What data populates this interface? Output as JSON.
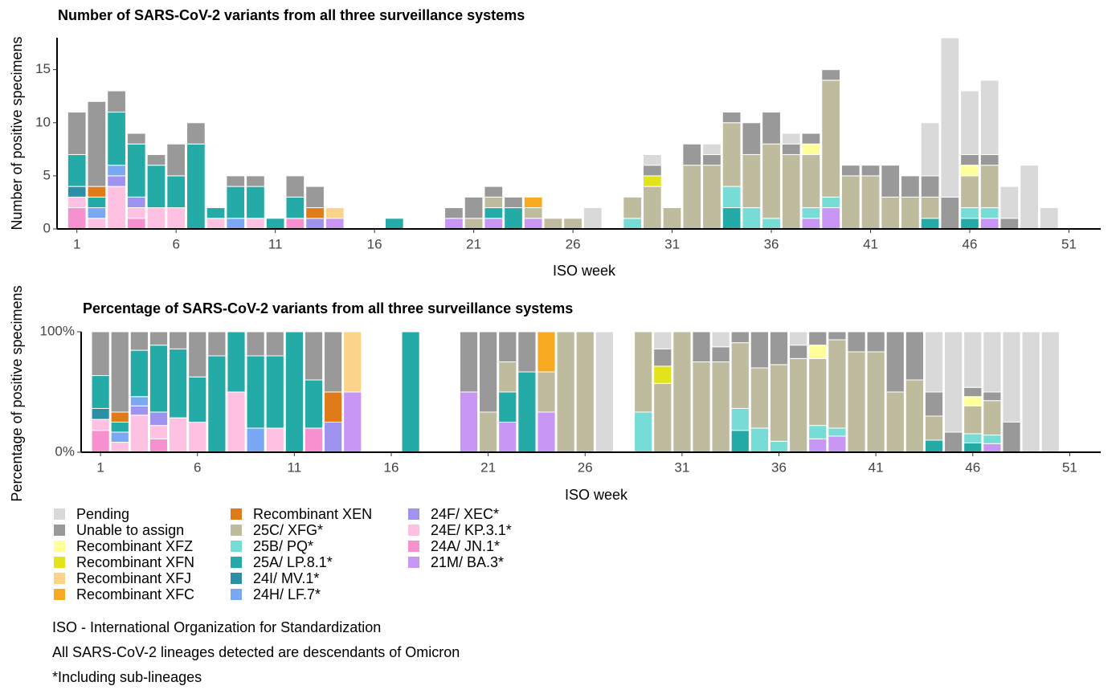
{
  "chart_data": [
    {
      "type": "bar",
      "stacking": "normal",
      "title": "Number of SARS-CoV-2 variants from all three surveillance systems",
      "x_label": "ISO week",
      "y_label": "Number of positive specimens",
      "x": [
        1,
        2,
        3,
        4,
        5,
        6,
        7,
        8,
        9,
        10,
        11,
        12,
        13,
        14,
        17,
        20,
        21,
        22,
        23,
        24,
        25,
        26,
        27,
        29,
        30,
        31,
        32,
        33,
        34,
        35,
        36,
        37,
        38,
        39,
        40,
        41,
        42,
        43,
        44,
        45,
        46,
        47,
        48,
        49,
        50
      ],
      "xlim": [
        0,
        52.6
      ],
      "xticks": [
        1,
        6,
        11,
        16,
        21,
        26,
        31,
        36,
        41,
        46,
        51
      ],
      "ylim": [
        0,
        18
      ],
      "yticks": [
        0,
        5,
        10,
        15
      ],
      "series": [
        {
          "name": "Pending",
          "color": "#d9d9d9",
          "values": [
            0,
            0,
            0,
            0,
            0,
            0,
            0,
            0,
            0,
            0,
            0,
            0,
            0,
            0,
            0,
            0,
            0,
            0,
            0,
            0,
            0,
            0,
            2,
            0,
            1,
            0,
            0,
            1,
            0,
            0,
            0,
            1,
            0,
            0,
            0,
            0,
            0,
            0,
            5,
            15,
            6,
            7,
            3,
            6,
            2
          ]
        },
        {
          "name": "Unable to assign",
          "color": "#999999",
          "values": [
            4,
            8,
            2,
            1,
            1,
            3,
            2,
            0,
            1,
            1,
            0,
            2,
            2,
            0,
            0,
            1,
            2,
            1,
            1,
            0,
            0,
            0,
            0,
            0,
            1,
            0,
            2,
            1,
            1,
            3,
            3,
            1,
            1,
            1,
            1,
            1,
            3,
            2,
            2,
            3,
            1,
            1,
            1,
            0,
            0
          ]
        },
        {
          "name": "Recombinant XFZ",
          "color": "#ffff99",
          "values": [
            0,
            0,
            0,
            0,
            0,
            0,
            0,
            0,
            0,
            0,
            0,
            0,
            0,
            0,
            0,
            0,
            0,
            0,
            0,
            0,
            0,
            0,
            0,
            0,
            0,
            0,
            0,
            0,
            0,
            0,
            0,
            0,
            1,
            0,
            0,
            0,
            0,
            0,
            0,
            0,
            1,
            0,
            0,
            0,
            0
          ]
        },
        {
          "name": "Recombinant XFN",
          "color": "#e3e31a",
          "values": [
            0,
            0,
            0,
            0,
            0,
            0,
            0,
            0,
            0,
            0,
            0,
            0,
            0,
            0,
            0,
            0,
            0,
            0,
            0,
            0,
            0,
            0,
            0,
            0,
            1,
            0,
            0,
            0,
            0,
            0,
            0,
            0,
            0,
            0,
            0,
            0,
            0,
            0,
            0,
            0,
            0,
            0,
            0,
            0,
            0
          ]
        },
        {
          "name": "Recombinant XFJ",
          "color": "#fcd38a",
          "values": [
            0,
            0,
            0,
            0,
            0,
            0,
            0,
            0,
            0,
            0,
            0,
            0,
            0,
            1,
            0,
            0,
            0,
            0,
            0,
            0,
            0,
            0,
            0,
            0,
            0,
            0,
            0,
            0,
            0,
            0,
            0,
            0,
            0,
            0,
            0,
            0,
            0,
            0,
            0,
            0,
            0,
            0,
            0,
            0,
            0
          ]
        },
        {
          "name": "Recombinant XFC",
          "color": "#f8a922",
          "values": [
            0,
            0,
            0,
            0,
            0,
            0,
            0,
            0,
            0,
            0,
            0,
            0,
            0,
            0,
            0,
            0,
            0,
            0,
            0,
            1,
            0,
            0,
            0,
            0,
            0,
            0,
            0,
            0,
            0,
            0,
            0,
            0,
            0,
            0,
            0,
            0,
            0,
            0,
            0,
            0,
            0,
            0,
            0,
            0,
            0
          ]
        },
        {
          "name": "Recombinant XEN",
          "color": "#e07b1a",
          "values": [
            0,
            1,
            0,
            0,
            0,
            0,
            0,
            0,
            0,
            0,
            0,
            0,
            1,
            0,
            0,
            0,
            0,
            0,
            0,
            0,
            0,
            0,
            0,
            0,
            0,
            0,
            0,
            0,
            0,
            0,
            0,
            0,
            0,
            0,
            0,
            0,
            0,
            0,
            0,
            0,
            0,
            0,
            0,
            0,
            0
          ]
        },
        {
          "name": "25C/ XFG*",
          "color": "#bfbb9e",
          "values": [
            0,
            0,
            0,
            0,
            0,
            0,
            0,
            0,
            0,
            0,
            0,
            0,
            0,
            0,
            0,
            0,
            1,
            1,
            0,
            1,
            1,
            1,
            0,
            2,
            4,
            2,
            6,
            6,
            6,
            5,
            7,
            7,
            5,
            11,
            5,
            5,
            3,
            3,
            2,
            0,
            3,
            4,
            0,
            0,
            0
          ]
        },
        {
          "name": "25B/ PQ*",
          "color": "#77dbd6",
          "values": [
            0,
            0,
            0,
            0,
            0,
            0,
            0,
            0,
            0,
            0,
            0,
            0,
            0,
            0,
            0,
            0,
            0,
            0,
            0,
            0,
            0,
            0,
            0,
            1,
            0,
            0,
            0,
            0,
            2,
            2,
            1,
            0,
            1,
            1,
            0,
            0,
            0,
            0,
            0,
            0,
            1,
            1,
            0,
            0,
            0
          ]
        },
        {
          "name": "25A/ LP.8.1*",
          "color": "#25aba7",
          "values": [
            3,
            1,
            5,
            5,
            4,
            3,
            8,
            1,
            3,
            3,
            1,
            2,
            0,
            0,
            1,
            0,
            0,
            1,
            2,
            0,
            0,
            0,
            0,
            0,
            0,
            0,
            0,
            0,
            2,
            0,
            0,
            0,
            0,
            0,
            0,
            0,
            0,
            0,
            1,
            0,
            1,
            0,
            0,
            0,
            0
          ]
        },
        {
          "name": "24I/ MV.1*",
          "color": "#2b8fa8",
          "values": [
            1,
            0,
            0,
            0,
            0,
            0,
            0,
            0,
            0,
            0,
            0,
            0,
            0,
            0,
            0,
            0,
            0,
            0,
            0,
            0,
            0,
            0,
            0,
            0,
            0,
            0,
            0,
            0,
            0,
            0,
            0,
            0,
            0,
            0,
            0,
            0,
            0,
            0,
            0,
            0,
            0,
            0,
            0,
            0,
            0
          ]
        },
        {
          "name": "24H/ LF.7*",
          "color": "#7aa8f3",
          "values": [
            0,
            1,
            1,
            0,
            0,
            0,
            0,
            0,
            1,
            0,
            0,
            0,
            0,
            0,
            0,
            0,
            0,
            0,
            0,
            0,
            0,
            0,
            0,
            0,
            0,
            0,
            0,
            0,
            0,
            0,
            0,
            0,
            0,
            0,
            0,
            0,
            0,
            0,
            0,
            0,
            0,
            0,
            0,
            0,
            0
          ]
        },
        {
          "name": "24F/ XEC*",
          "color": "#9e94f0",
          "values": [
            0,
            0,
            1,
            1,
            0,
            0,
            0,
            0,
            0,
            0,
            0,
            0,
            1,
            0,
            0,
            0,
            0,
            0,
            0,
            0,
            0,
            0,
            0,
            0,
            0,
            0,
            0,
            0,
            0,
            0,
            0,
            0,
            0,
            0,
            0,
            0,
            0,
            0,
            0,
            0,
            0,
            0,
            0,
            0,
            0
          ]
        },
        {
          "name": "24E/ KP.3.1*",
          "color": "#ffc1e1",
          "values": [
            1,
            1,
            4,
            1,
            2,
            2,
            0,
            1,
            0,
            1,
            0,
            0,
            0,
            0,
            0,
            0,
            0,
            0,
            0,
            0,
            0,
            0,
            0,
            0,
            0,
            0,
            0,
            0,
            0,
            0,
            0,
            0,
            0,
            0,
            0,
            0,
            0,
            0,
            0,
            0,
            0,
            0,
            0,
            0,
            0
          ]
        },
        {
          "name": "24A/ JN.1*",
          "color": "#f790cf",
          "values": [
            2,
            0,
            0,
            1,
            0,
            0,
            0,
            0,
            0,
            0,
            0,
            1,
            0,
            0,
            0,
            0,
            0,
            0,
            0,
            0,
            0,
            0,
            0,
            0,
            0,
            0,
            0,
            0,
            0,
            0,
            0,
            0,
            0,
            0,
            0,
            0,
            0,
            0,
            0,
            0,
            0,
            0,
            0,
            0,
            0
          ]
        },
        {
          "name": "21M/ BA.3*",
          "color": "#c896f5",
          "values": [
            0,
            0,
            0,
            0,
            0,
            0,
            0,
            0,
            0,
            0,
            0,
            0,
            0,
            1,
            0,
            1,
            0,
            1,
            0,
            1,
            0,
            0,
            0,
            0,
            0,
            0,
            0,
            0,
            0,
            0,
            0,
            0,
            1,
            2,
            0,
            0,
            0,
            0,
            0,
            0,
            0,
            1,
            0,
            0,
            0
          ]
        }
      ]
    },
    {
      "type": "bar",
      "stacking": "percent",
      "title": "Percentage of SARS-CoV-2 variants from all three surveillance systems",
      "x_label": "ISO week",
      "y_label": "Percentage of positive specimens",
      "xlim": [
        0,
        52.6
      ],
      "xticks": [
        1,
        6,
        11,
        16,
        21,
        26,
        31,
        36,
        41,
        46,
        51
      ],
      "ylim": [
        0,
        100
      ],
      "yticks": [
        {
          "value": 0,
          "label": "0%"
        },
        {
          "value": 100,
          "label": "100%"
        }
      ]
    }
  ],
  "notes": [
    "ISO - International Organization for Standardization",
    "All SARS-CoV-2 lineages detected are descendants of Omicron",
    "*Including sub-lineages"
  ]
}
